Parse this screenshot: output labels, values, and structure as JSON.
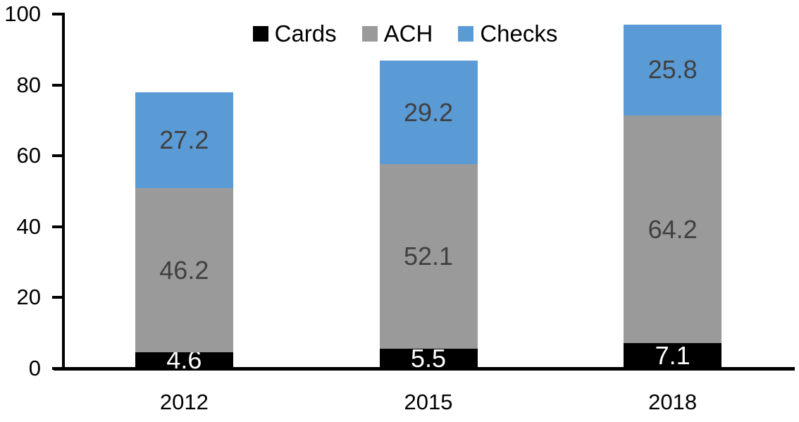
{
  "chart_data": {
    "type": "bar",
    "stacked": true,
    "title": "",
    "xlabel": "",
    "ylabel": "",
    "categories": [
      "2012",
      "2015",
      "2018"
    ],
    "series": [
      {
        "name": "Cards",
        "color": "#000000",
        "label_color": "#ffffff",
        "values": [
          4.6,
          5.5,
          7.1
        ]
      },
      {
        "name": "ACH",
        "color": "#9A9A9A",
        "label_color": "#404040",
        "values": [
          46.2,
          52.1,
          64.2
        ]
      },
      {
        "name": "Checks",
        "color": "#5B9BD5",
        "label_color": "#404040",
        "values": [
          27.2,
          29.2,
          25.8
        ]
      }
    ],
    "totals": [
      78.0,
      86.8,
      97.1
    ],
    "y_ticks": [
      0,
      20,
      40,
      60,
      80,
      100
    ],
    "ylim": [
      0,
      100
    ],
    "grid": false,
    "legend_position": "top",
    "axis_color": "#000000",
    "tick_label_color": "#000000"
  }
}
